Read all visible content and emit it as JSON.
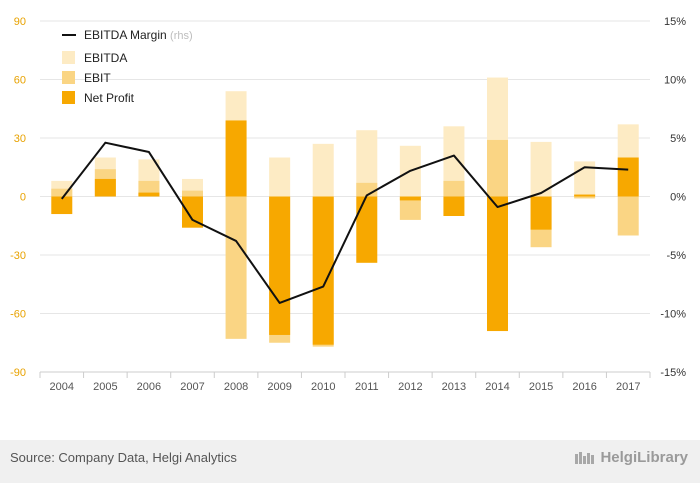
{
  "chart_data": {
    "type": "bar",
    "categories": [
      "2004",
      "2005",
      "2006",
      "2007",
      "2008",
      "2009",
      "2010",
      "2011",
      "2012",
      "2013",
      "2014",
      "2015",
      "2016",
      "2017"
    ],
    "series": [
      {
        "name": "EBITDA",
        "values": [
          8,
          20,
          19,
          9,
          54,
          20,
          27,
          34,
          26,
          36,
          61,
          28,
          18,
          37
        ],
        "color": "#fdebc4"
      },
      {
        "name": "EBIT",
        "values": [
          4,
          14,
          8,
          3,
          -73,
          -75,
          -77,
          7,
          -12,
          8,
          29,
          -26,
          -1,
          -20
        ],
        "color": "#fad584"
      },
      {
        "name": "Net Profit",
        "values": [
          -9,
          9,
          2,
          -16,
          39,
          -71,
          -76,
          -34,
          -2,
          -10,
          -69,
          -17,
          1,
          20
        ],
        "color": "#f7a800"
      },
      {
        "name": "EBITDA Margin",
        "name_suffix": "(rhs)",
        "type": "line",
        "axis": "right",
        "values": [
          -0.2,
          4.6,
          3.8,
          -2.0,
          -3.8,
          -9.1,
          -7.7,
          0.1,
          2.2,
          3.5,
          -0.9,
          0.3,
          2.5,
          2.3
        ],
        "color": "#111111"
      }
    ],
    "ylim": [
      -90,
      90
    ],
    "y_ticks": [
      -90,
      -60,
      -30,
      0,
      30,
      60,
      90
    ],
    "y2lim": [
      -15,
      15
    ],
    "y2_ticks": [
      -15,
      -10,
      -5,
      0,
      5,
      10,
      15
    ],
    "y2_tick_suffix": "%",
    "grid": true,
    "legend_position": "top-left"
  },
  "footer": {
    "source": "Source: Company Data, Helgi Analytics",
    "brand": "HelgiLibrary"
  },
  "colors": {
    "left_axis": "#e8a200",
    "grid": "#e6e6e6",
    "footer_bg": "#f0f0f0"
  }
}
